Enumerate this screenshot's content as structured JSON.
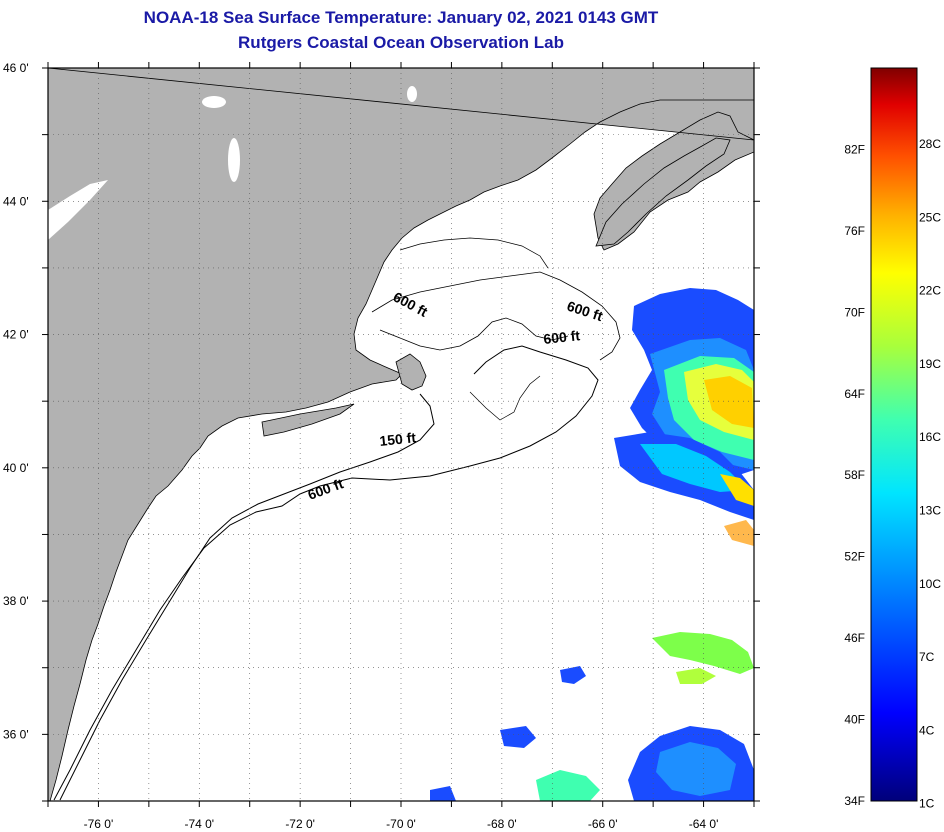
{
  "header": {
    "title": "NOAA-18 Sea Surface Temperature:  January 02, 2021 0143 GMT",
    "subtitle": "Rutgers Coastal Ocean Observation Lab"
  },
  "map": {
    "lat_range": [
      35,
      46
    ],
    "lon_range": [
      -77,
      -63
    ],
    "lat_ticks": [
      "46 0'",
      "44 0'",
      "42 0'",
      "40 0'",
      "38 0'",
      "36 0'"
    ],
    "lon_ticks": [
      "-76 0'",
      "-74 0'",
      "-72 0'",
      "-70 0'",
      "-68 0'",
      "-66 0'",
      "-64 0'"
    ],
    "contour_labels": [
      "600 ft",
      "600 ft",
      "600 ft",
      "150 ft",
      "600 ft"
    ],
    "colors": {
      "land": "#b2b2b2",
      "water": "#ffffff",
      "title": "#1a1aa6"
    }
  },
  "colorbar": {
    "fahrenheit_labels": [
      "82F",
      "76F",
      "70F",
      "64F",
      "58F",
      "52F",
      "46F",
      "40F",
      "34F"
    ],
    "celsius_labels": [
      "28C",
      "25C",
      "22C",
      "19C",
      "16C",
      "13C",
      "10C",
      "7C",
      "4C",
      "1C"
    ]
  }
}
